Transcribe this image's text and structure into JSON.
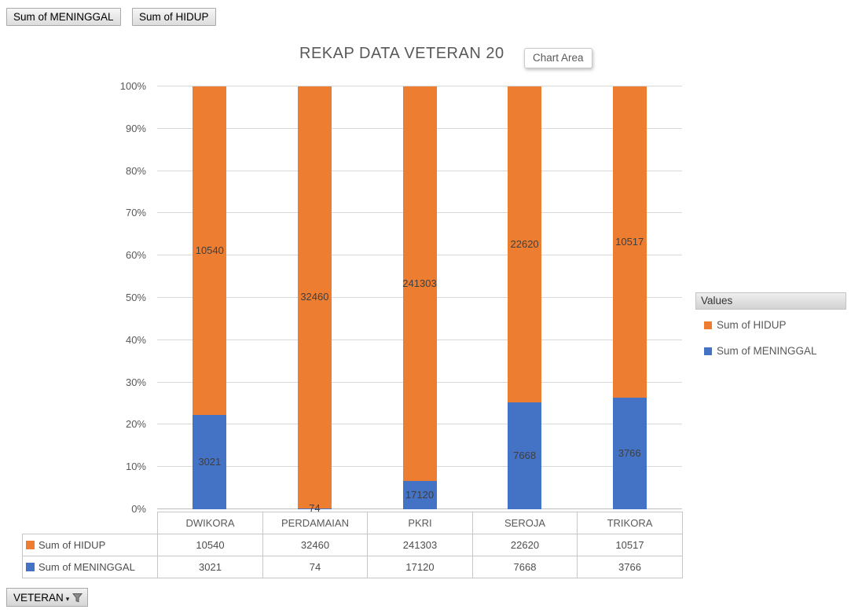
{
  "field_buttons": [
    {
      "label": "Sum of MENINGGAL"
    },
    {
      "label": "Sum of HIDUP"
    }
  ],
  "tooltip": {
    "label": "Chart Area"
  },
  "chart_data": {
    "type": "bar",
    "subtype": "stacked-100-percent",
    "title": "REKAP DATA VETERAN 20",
    "categories": [
      "DWIKORA",
      "PERDAMAIAN",
      "PKRI",
      "SEROJA",
      "TRIKORA"
    ],
    "series": [
      {
        "name": "Sum of MENINGGAL",
        "color": "#4472C4",
        "values": [
          3021,
          74,
          17120,
          7668,
          3766
        ]
      },
      {
        "name": "Sum of HIDUP",
        "color": "#ED7D31",
        "values": [
          10540,
          32460,
          241303,
          22620,
          10517
        ]
      }
    ],
    "y_axis": {
      "ticks": [
        "0%",
        "10%",
        "20%",
        "30%",
        "40%",
        "50%",
        "60%",
        "70%",
        "80%",
        "90%",
        "100%"
      ],
      "min": "0%",
      "max": "100%"
    },
    "grid": true,
    "legend_position": "right",
    "data_table_shown": true
  },
  "legend": {
    "header": "Values",
    "items": [
      {
        "label": "Sum of HIDUP",
        "color": "#ED7D31"
      },
      {
        "label": "Sum of MENINGGAL",
        "color": "#4472C4"
      }
    ]
  },
  "filter": {
    "label": "VETERAN"
  },
  "colors": {
    "orange": "#ED7D31",
    "blue": "#4472C4",
    "gridline": "#D9D9D9",
    "axis_text": "#595959"
  }
}
